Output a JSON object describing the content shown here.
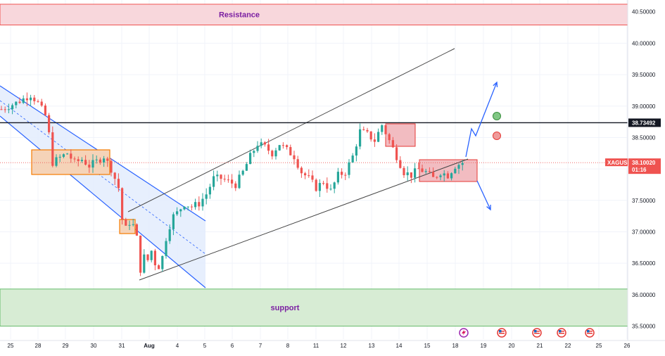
{
  "chart_data": {
    "type": "candlestick",
    "symbol": "XAGUSD",
    "ylim": [
      35.45,
      40.62
    ],
    "y_ticks": [
      "40.50000",
      "40.00000",
      "39.50000",
      "39.00000",
      "38.50000",
      "38.00000",
      "37.50000",
      "37.00000",
      "36.50000",
      "36.00000",
      "35.50000"
    ],
    "x_ticks": [
      {
        "label": "25",
        "bold": false
      },
      {
        "label": "28",
        "bold": false
      },
      {
        "label": "29",
        "bold": false
      },
      {
        "label": "30",
        "bold": false
      },
      {
        "label": "31",
        "bold": false
      },
      {
        "label": "Aug",
        "bold": true
      },
      {
        "label": "4",
        "bold": false
      },
      {
        "label": "5",
        "bold": false
      },
      {
        "label": "6",
        "bold": false
      },
      {
        "label": "7",
        "bold": false
      },
      {
        "label": "8",
        "bold": false
      },
      {
        "label": "11",
        "bold": false
      },
      {
        "label": "12",
        "bold": false
      },
      {
        "label": "13",
        "bold": false
      },
      {
        "label": "14",
        "bold": false
      },
      {
        "label": "15",
        "bold": false
      },
      {
        "label": "18",
        "bold": false
      },
      {
        "label": "19",
        "bold": false
      },
      {
        "label": "20",
        "bold": false
      },
      {
        "label": "21",
        "bold": false
      },
      {
        "label": "22",
        "bold": false
      },
      {
        "label": "25",
        "bold": false
      },
      {
        "label": "26",
        "bold": false
      }
    ],
    "price_path": [
      [
        0,
        38.95
      ],
      [
        4,
        39.05
      ],
      [
        8,
        39.18
      ],
      [
        10,
        39.05
      ],
      [
        12,
        38.85
      ],
      [
        13,
        38.55
      ],
      [
        14,
        38.1
      ],
      [
        16,
        38.18
      ],
      [
        18,
        38.25
      ],
      [
        20,
        38.1
      ],
      [
        22,
        38.15
      ],
      [
        24,
        38.05
      ],
      [
        26,
        38.12
      ],
      [
        28,
        38.2
      ],
      [
        30,
        38.0
      ],
      [
        32,
        37.7
      ],
      [
        33,
        37.2
      ],
      [
        34,
        37.05
      ],
      [
        35,
        37.15
      ],
      [
        36,
        37.1
      ],
      [
        37,
        36.9
      ],
      [
        38,
        36.4
      ],
      [
        39,
        36.6
      ],
      [
        40,
        36.55
      ],
      [
        41,
        36.7
      ],
      [
        42,
        36.5
      ],
      [
        43,
        36.45
      ],
      [
        44,
        36.6
      ],
      [
        45,
        36.9
      ],
      [
        46,
        37.1
      ],
      [
        47,
        37.25
      ],
      [
        48,
        37.3
      ],
      [
        50,
        37.45
      ],
      [
        52,
        37.4
      ],
      [
        54,
        37.45
      ],
      [
        56,
        37.6
      ],
      [
        58,
        37.85
      ],
      [
        60,
        37.85
      ],
      [
        62,
        37.8
      ],
      [
        64,
        37.75
      ],
      [
        66,
        37.95
      ],
      [
        68,
        38.2
      ],
      [
        70,
        38.4
      ],
      [
        72,
        38.35
      ],
      [
        74,
        38.25
      ],
      [
        76,
        38.4
      ],
      [
        78,
        38.3
      ],
      [
        80,
        38.2
      ],
      [
        82,
        37.95
      ],
      [
        84,
        37.85
      ],
      [
        86,
        37.7
      ],
      [
        88,
        37.8
      ],
      [
        90,
        37.65
      ],
      [
        92,
        37.9
      ],
      [
        94,
        37.95
      ],
      [
        96,
        38.2
      ],
      [
        98,
        38.6
      ],
      [
        100,
        38.55
      ],
      [
        102,
        38.45
      ],
      [
        104,
        38.7
      ],
      [
        106,
        38.45
      ],
      [
        108,
        38.2
      ],
      [
        110,
        37.95
      ],
      [
        112,
        37.9
      ],
      [
        114,
        38.0
      ],
      [
        116,
        37.95
      ],
      [
        118,
        37.85
      ],
      [
        120,
        37.95
      ],
      [
        122,
        37.9
      ],
      [
        124,
        38.05
      ],
      [
        126,
        38.1
      ]
    ],
    "levels": {
      "resistance": {
        "label": "Resistance",
        "from": 40.29,
        "to": 40.62
      },
      "support": {
        "label": "support",
        "from": 35.5,
        "to": 36.09
      },
      "key_level": {
        "label": "38.73492",
        "value": 38.73492
      },
      "current_price": {
        "value": 38.1002,
        "label": "38.10020",
        "countdown": "01:16"
      }
    },
    "ticker_label": "XAGUSD",
    "colors": {
      "up": "#26a69a",
      "down": "#ef5350",
      "resistance_fill": "#f8d7dc",
      "support_fill": "#d7ecd4",
      "channel_blue": "#2962ff",
      "channel_fill": "#e3ecfd",
      "box_orange": "#f57c00",
      "box_red": "#e53935",
      "line_black": "#131722",
      "zone_text": "#7b1fa2"
    }
  }
}
